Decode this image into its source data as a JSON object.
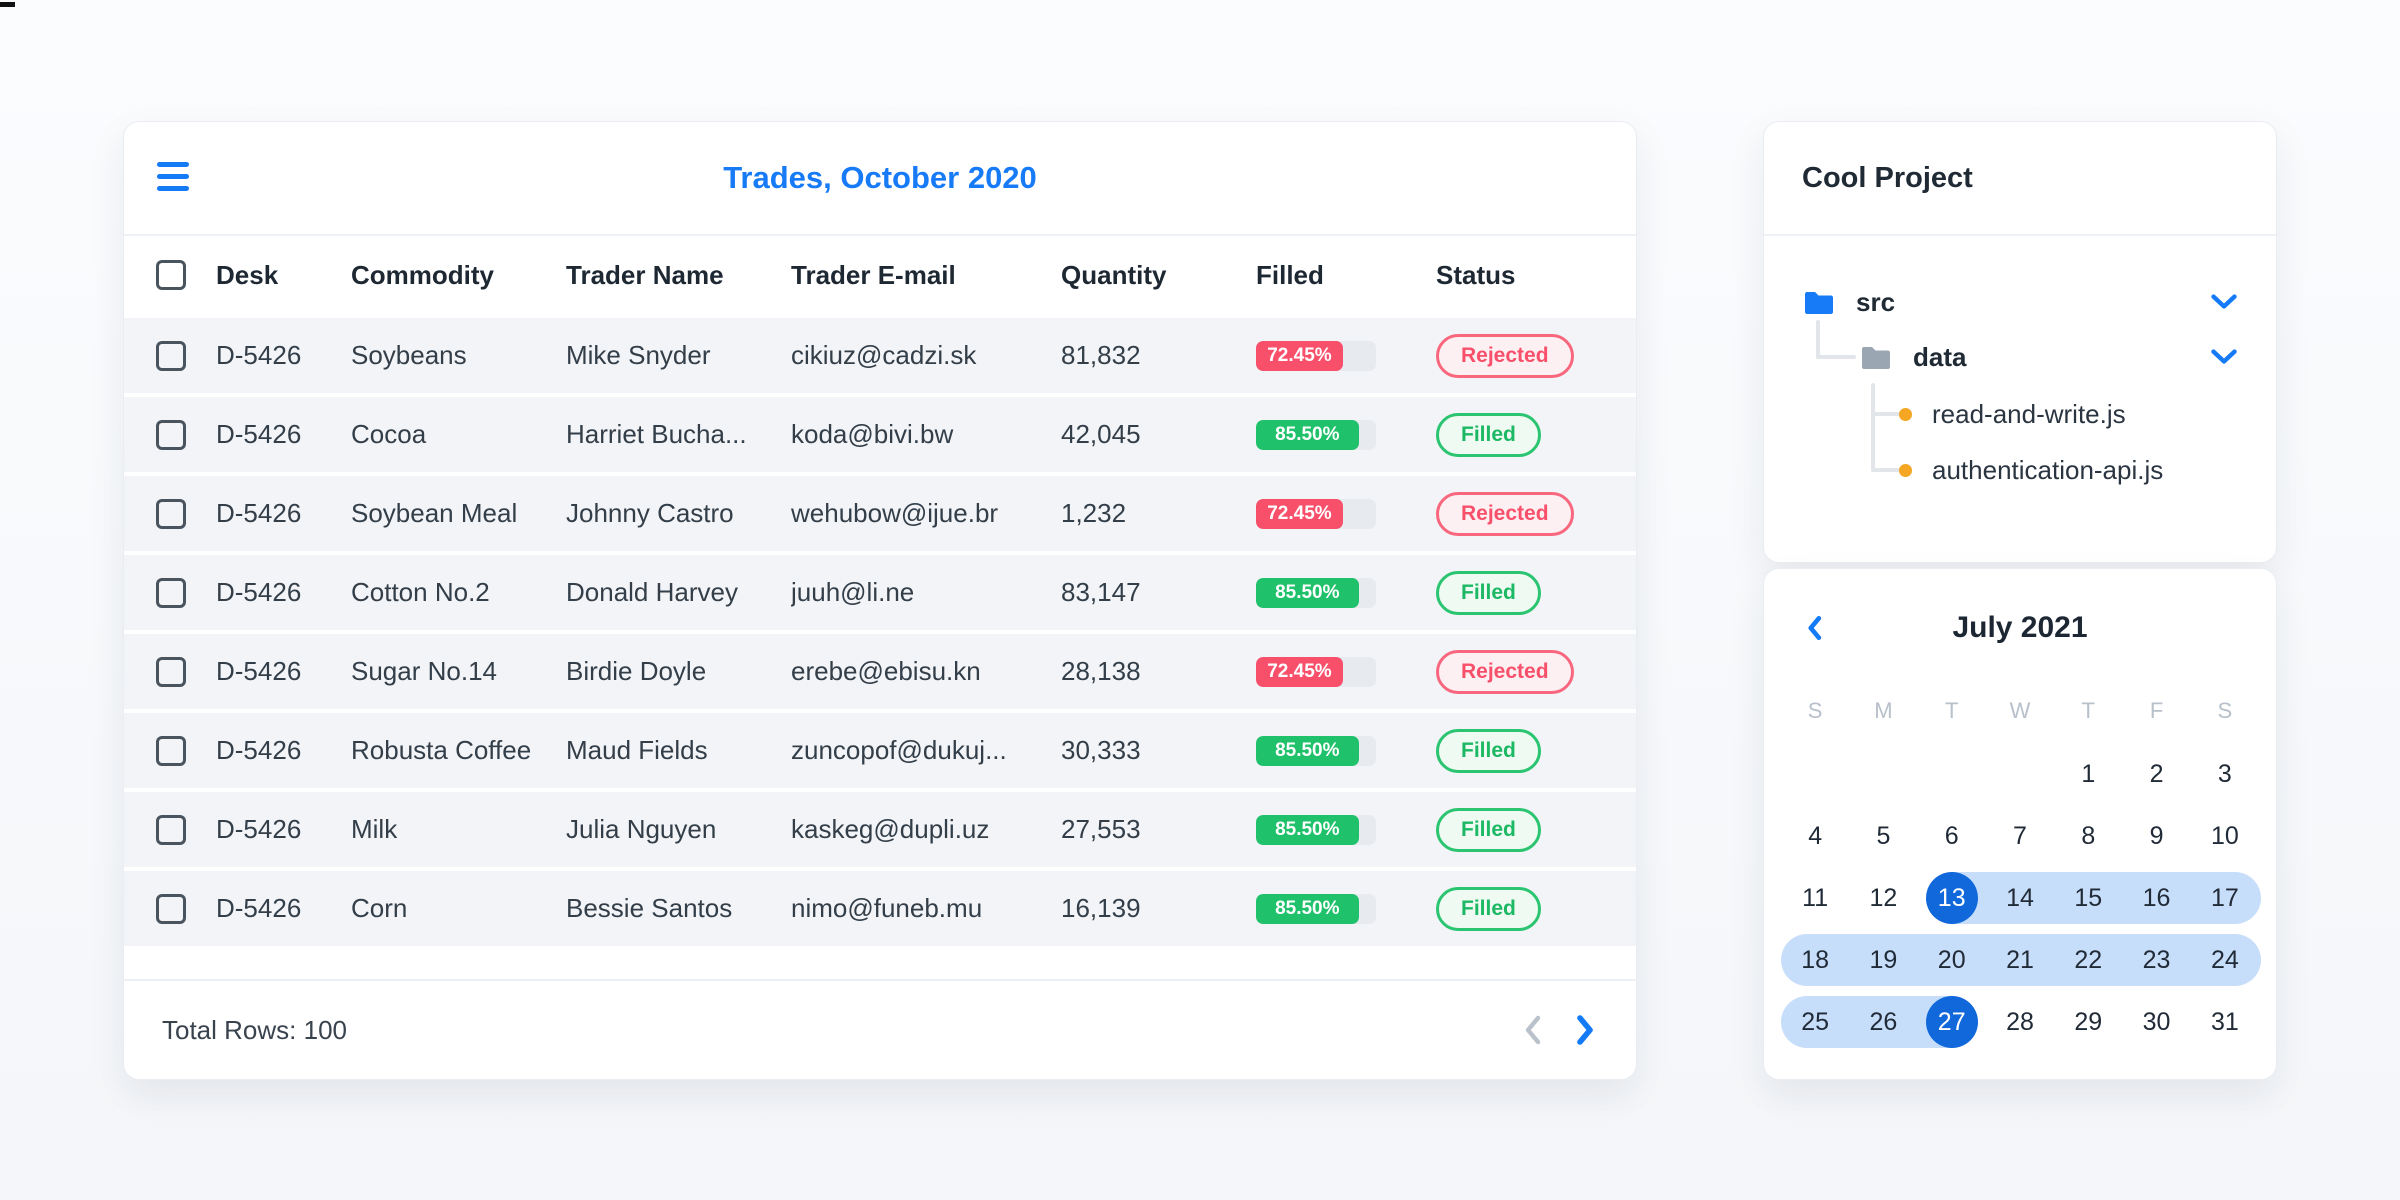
{
  "colors": {
    "accent_blue": "#147af6",
    "selected_day_blue": "#1168da",
    "range_highlight_blue": "#c7defb",
    "progress_red": "#f8506b",
    "progress_green": "#1fc16b",
    "badge_red_bg": "#fdf0f2",
    "badge_green_bg": "#eefaf2",
    "row_bg": "#f2f4f7",
    "folder_blue": "#177bf7",
    "folder_gray": "#9aa6b2",
    "file_dot_orange": "#f5a623"
  },
  "icons": {
    "menu": "hamburger-menu",
    "prev_page": "chevron-left",
    "next_page": "chevron-right",
    "tree_expand": "chevron-down",
    "calendar_prev": "chevron-left",
    "folder": "folder",
    "file_bullet": "dot"
  },
  "trades_card": {
    "title": "Trades, October 2020",
    "columns": [
      "Desk",
      "Commodity",
      "Trader Name",
      "Trader E-mail",
      "Quantity",
      "Filled",
      "Status"
    ],
    "rows": [
      {
        "desk": "D-5426",
        "commodity": "Soybeans",
        "trader": "Mike Snyder",
        "email": "cikiuz@cadzi.sk",
        "quantity": "81,832",
        "filled": "72.45%",
        "status": "Rejected"
      },
      {
        "desk": "D-5426",
        "commodity": "Cocoa",
        "trader": "Harriet Bucha...",
        "email": "koda@bivi.bw",
        "quantity": "42,045",
        "filled": "85.50%",
        "status": "Filled"
      },
      {
        "desk": "D-5426",
        "commodity": "Soybean Meal",
        "trader": "Johnny Castro",
        "email": "wehubow@ijue.br",
        "quantity": "1,232",
        "filled": "72.45%",
        "status": "Rejected"
      },
      {
        "desk": "D-5426",
        "commodity": "Cotton No.2",
        "trader": "Donald Harvey",
        "email": "juuh@li.ne",
        "quantity": "83,147",
        "filled": "85.50%",
        "status": "Filled"
      },
      {
        "desk": "D-5426",
        "commodity": "Sugar No.14",
        "trader": "Birdie Doyle",
        "email": "erebe@ebisu.kn",
        "quantity": "28,138",
        "filled": "72.45%",
        "status": "Rejected"
      },
      {
        "desk": "D-5426",
        "commodity": "Robusta Coffee",
        "trader": "Maud Fields",
        "email": "zuncopof@dukuj...",
        "quantity": "30,333",
        "filled": "85.50%",
        "status": "Filled"
      },
      {
        "desk": "D-5426",
        "commodity": "Milk",
        "trader": "Julia Nguyen",
        "email": "kaskeg@dupli.uz",
        "quantity": "27,553",
        "filled": "85.50%",
        "status": "Filled"
      },
      {
        "desk": "D-5426",
        "commodity": "Corn",
        "trader": "Bessie Santos",
        "email": "nimo@funeb.mu",
        "quantity": "16,139",
        "filled": "85.50%",
        "status": "Filled"
      }
    ],
    "footer": {
      "total_label": "Total Rows: 100"
    }
  },
  "project_card": {
    "title": "Cool Project",
    "tree": {
      "folders": [
        {
          "name": "src",
          "color": "blue"
        },
        {
          "name": "data",
          "color": "gray"
        }
      ],
      "files": [
        {
          "name": "read-and-write.js"
        },
        {
          "name": "authentication-api.js"
        }
      ]
    }
  },
  "calendar_card": {
    "title": "July 2021",
    "weekdays": [
      "S",
      "M",
      "T",
      "W",
      "T",
      "F",
      "S"
    ],
    "weeks": [
      {
        "days": [
          "",
          "",
          "",
          "",
          "1",
          "2",
          "3"
        ]
      },
      {
        "days": [
          "4",
          "5",
          "6",
          "7",
          "8",
          "9",
          "10"
        ]
      },
      {
        "days": [
          "11",
          "12",
          "13",
          "14",
          "15",
          "16",
          "17"
        ],
        "pill": {
          "from": 2,
          "to": "edge"
        }
      },
      {
        "days": [
          "18",
          "19",
          "20",
          "21",
          "22",
          "23",
          "24"
        ],
        "pill": {
          "from": "edge",
          "to": "edge"
        }
      },
      {
        "days": [
          "25",
          "26",
          "27",
          "28",
          "29",
          "30",
          "31"
        ],
        "pill": {
          "from": "edge",
          "to": 2
        }
      }
    ],
    "selected_days": [
      "13",
      "27"
    ],
    "range_start": "13",
    "range_end": "27"
  }
}
